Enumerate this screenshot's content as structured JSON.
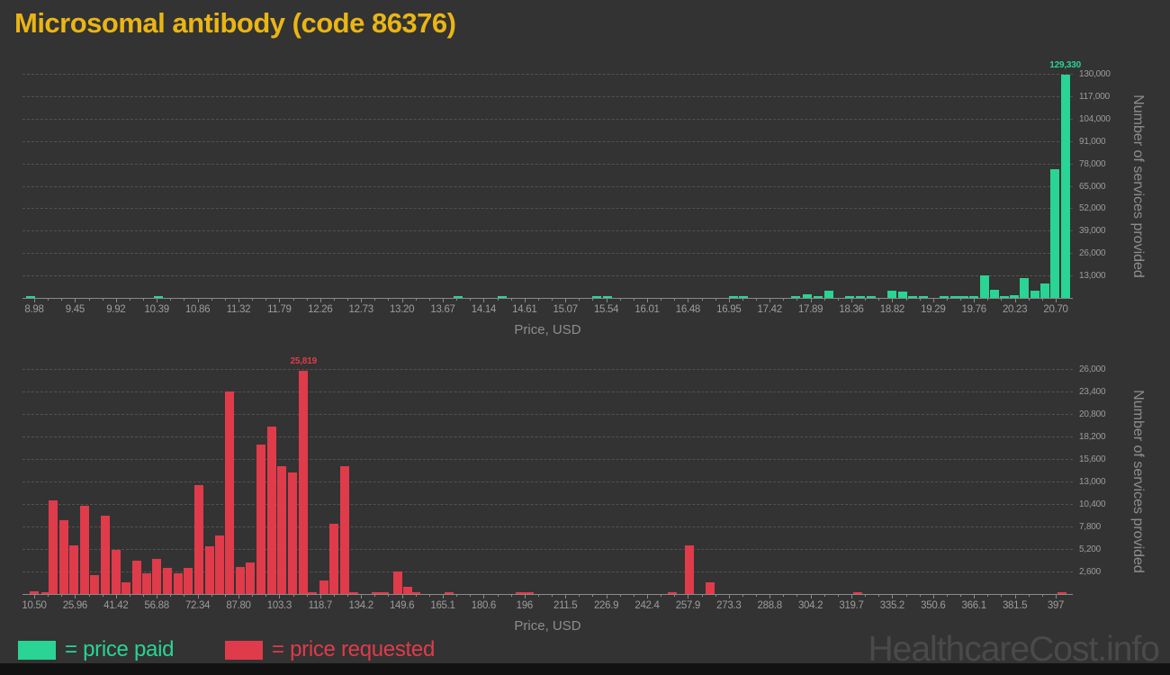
{
  "title": "Microsomal antibody (code 86376)",
  "watermark": "HealthcareCost.info",
  "legend": {
    "paid_label": "= price paid",
    "requested_label": "= price requested"
  },
  "colors": {
    "background": "#333333",
    "paid": "#29d494",
    "requested": "#e03b4a",
    "title": "#eab515",
    "axis_text": "#9c9c9c",
    "axis_title": "#8d8d8d",
    "gridline": "#525252",
    "axis_line": "#8a8a8a",
    "watermark": "#4a4a4a",
    "footer_bar": "#121212"
  },
  "chart_data": [
    {
      "type": "bar",
      "series_name": "price paid",
      "color_key": "paid",
      "xlabel": "Price, USD",
      "ylabel": "Number of services provided",
      "x_min": 8.98,
      "x_max": 20.7,
      "x_tick_labels": [
        "8.98",
        "9.45",
        "9.92",
        "10.39",
        "10.86",
        "11.32",
        "11.79",
        "12.26",
        "12.73",
        "13.20",
        "13.67",
        "14.14",
        "14.61",
        "15.07",
        "15.54",
        "16.01",
        "16.48",
        "16.95",
        "17.42",
        "17.89",
        "18.36",
        "18.82",
        "19.29",
        "19.76",
        "20.23",
        "20.70"
      ],
      "y_max": 130000,
      "y_tick_labels": [
        "130,000",
        "117,000",
        "104,000",
        "91,000",
        "78,000",
        "65,000",
        "52,000",
        "39,000",
        "26,000",
        "13,000"
      ],
      "grid": true,
      "legend_position": "bottom",
      "peak_label": {
        "text": "129,330",
        "x": 20.81
      },
      "bars": [
        [
          8.94,
          600
        ],
        [
          10.4,
          500
        ],
        [
          13.84,
          400
        ],
        [
          14.35,
          400
        ],
        [
          15.43,
          800
        ],
        [
          15.56,
          800
        ],
        [
          17.0,
          600
        ],
        [
          17.12,
          600
        ],
        [
          17.72,
          500
        ],
        [
          17.85,
          2000
        ],
        [
          17.97,
          600
        ],
        [
          18.1,
          4200
        ],
        [
          18.34,
          1000
        ],
        [
          18.46,
          600
        ],
        [
          18.58,
          500
        ],
        [
          18.82,
          4000
        ],
        [
          18.94,
          3400
        ],
        [
          19.06,
          700
        ],
        [
          19.18,
          600
        ],
        [
          19.42,
          900
        ],
        [
          19.54,
          600
        ],
        [
          19.65,
          500
        ],
        [
          19.76,
          1300
        ],
        [
          19.88,
          13000
        ],
        [
          20.0,
          4700
        ],
        [
          20.11,
          600
        ],
        [
          20.22,
          1800
        ],
        [
          20.34,
          11400
        ],
        [
          20.46,
          4300
        ],
        [
          20.58,
          8300
        ],
        [
          20.69,
          74500
        ],
        [
          20.81,
          129330
        ]
      ]
    },
    {
      "type": "bar",
      "series_name": "price requested",
      "color_key": "requested",
      "xlabel": "Price, USD",
      "ylabel": "Number of services provided",
      "x_min": 10.5,
      "x_max": 397,
      "x_tick_labels": [
        "10.50",
        "25.96",
        "41.42",
        "56.88",
        "72.34",
        "87.80",
        "103.3",
        "118.7",
        "134.2",
        "149.6",
        "165.1",
        "180.6",
        "196",
        "211.5",
        "226.9",
        "242.4",
        "257.9",
        "273.3",
        "288.8",
        "304.2",
        "319.7",
        "335.2",
        "350.6",
        "366.1",
        "381.5",
        "397"
      ],
      "y_max": 26000,
      "y_tick_labels": [
        "26,000",
        "23,400",
        "20,800",
        "18,200",
        "15,600",
        "13,000",
        "10,400",
        "7,800",
        "5,200",
        "2,600"
      ],
      "grid": true,
      "legend_position": "bottom",
      "peak_label": {
        "text": "25,819",
        "x": 112.4
      },
      "bars": [
        [
          10.6,
          350
        ],
        [
          14.9,
          150
        ],
        [
          17.6,
          10800
        ],
        [
          21.6,
          8500
        ],
        [
          25.5,
          5600
        ],
        [
          29.6,
          10200
        ],
        [
          33.3,
          2200
        ],
        [
          37.4,
          9000
        ],
        [
          41.5,
          5100
        ],
        [
          45.2,
          1400
        ],
        [
          49.3,
          3800
        ],
        [
          53.0,
          2400
        ],
        [
          56.8,
          4100
        ],
        [
          60.9,
          3000
        ],
        [
          64.9,
          2400
        ],
        [
          68.7,
          3000
        ],
        [
          72.8,
          12600
        ],
        [
          76.9,
          5500
        ],
        [
          80.6,
          6800
        ],
        [
          84.4,
          23400
        ],
        [
          88.5,
          3100
        ],
        [
          92.3,
          3600
        ],
        [
          96.4,
          17300
        ],
        [
          100.5,
          19300
        ],
        [
          104.3,
          14800
        ],
        [
          108.4,
          14000
        ],
        [
          112.4,
          25819
        ],
        [
          115.6,
          200
        ],
        [
          120.2,
          1600
        ],
        [
          123.9,
          8100
        ],
        [
          128.0,
          14800
        ],
        [
          131.4,
          200
        ],
        [
          139.9,
          200
        ],
        [
          143.0,
          150
        ],
        [
          148.0,
          2600
        ],
        [
          151.8,
          800
        ],
        [
          155.0,
          150
        ],
        [
          167.5,
          150
        ],
        [
          194.5,
          150
        ],
        [
          197.8,
          150
        ],
        [
          252.0,
          200
        ],
        [
          258.4,
          5600
        ],
        [
          266.2,
          1400
        ],
        [
          322.0,
          250
        ],
        [
          399.5,
          200
        ]
      ]
    }
  ]
}
